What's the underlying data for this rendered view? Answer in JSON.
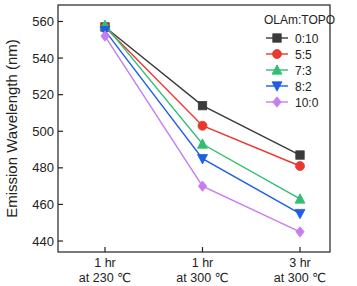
{
  "chart_data": {
    "type": "line",
    "y_label": "Emission Wavelength (nm)",
    "categories": [
      "1 hr\nat 230 ℃",
      "1 hr\nat 300 ℃",
      "3 hr\nat 300 ℃"
    ],
    "legend_title": "OLAm:TOPO",
    "legend": "upper right",
    "ylim": [
      434,
      569
    ],
    "yticks": [
      440,
      460,
      480,
      500,
      520,
      540,
      560
    ],
    "grid": false,
    "series": [
      {
        "name": "0:10",
        "color": "#3a3a3a",
        "marker": "square",
        "values": [
          557,
          514,
          487
        ]
      },
      {
        "name": "5:5",
        "color": "#e8392f",
        "marker": "circle",
        "values": [
          557,
          503,
          481
        ]
      },
      {
        "name": "7:3",
        "color": "#2fbf71",
        "marker": "triangle-up",
        "values": [
          558,
          493,
          463
        ]
      },
      {
        "name": "8:2",
        "color": "#1e5ee6",
        "marker": "triangle-down",
        "values": [
          555,
          485,
          455
        ]
      },
      {
        "name": "10:0",
        "color": "#c77df0",
        "marker": "diamond",
        "values": [
          552,
          470,
          445
        ]
      }
    ]
  }
}
